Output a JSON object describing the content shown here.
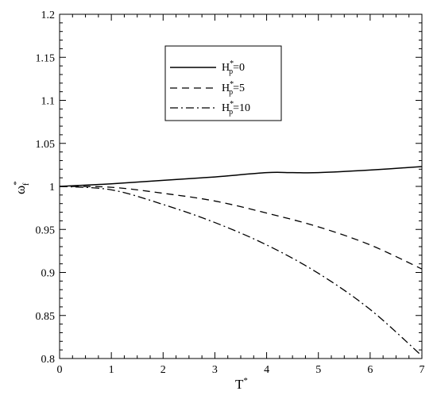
{
  "chart_data": {
    "type": "line",
    "xlabel": {
      "main": "T",
      "sup": "*"
    },
    "ylabel": {
      "main": "ω",
      "sup": "*",
      "sub": "f"
    },
    "xlim": [
      0,
      7
    ],
    "ylim": [
      0.8,
      1.2
    ],
    "xticks": [
      "0",
      "1",
      "2",
      "3",
      "4",
      "5",
      "6",
      "7"
    ],
    "yticks": [
      "0.8",
      "0.85",
      "0.9",
      "0.95",
      "1",
      "1.05",
      "1.1",
      "1.15",
      "1.2"
    ],
    "grid": false,
    "legend_position": "top-center",
    "series": [
      {
        "label": {
          "main": "H",
          "sup": "*",
          "sub": "p",
          "rest": "=0"
        },
        "style": "solid",
        "x": [
          0,
          1,
          2,
          3,
          4,
          4.5,
          5,
          6,
          7
        ],
        "y": [
          1.0,
          1.003,
          1.007,
          1.011,
          1.016,
          1.016,
          1.016,
          1.019,
          1.023
        ]
      },
      {
        "label": {
          "main": "H",
          "sup": "*",
          "sub": "p",
          "rest": "=5"
        },
        "style": "dashed",
        "x": [
          0,
          1,
          2,
          3,
          4,
          5,
          6,
          7
        ],
        "y": [
          1.0,
          0.999,
          0.992,
          0.983,
          0.969,
          0.953,
          0.932,
          0.904
        ]
      },
      {
        "label": {
          "main": "H",
          "sup": "*",
          "sub": "p",
          "rest": "=10"
        },
        "style": "dashdot",
        "x": [
          0,
          1,
          2,
          3,
          4,
          5,
          6,
          7
        ],
        "y": [
          1.0,
          0.996,
          0.979,
          0.958,
          0.932,
          0.899,
          0.857,
          0.803
        ]
      }
    ]
  }
}
